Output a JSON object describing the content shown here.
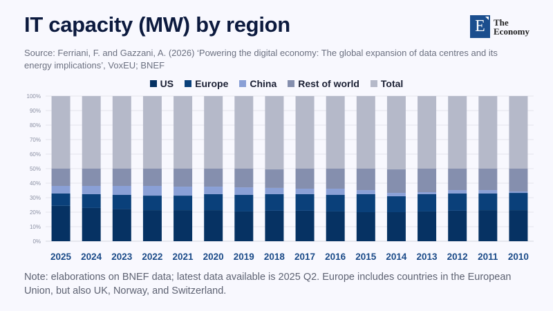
{
  "header": {
    "title": "IT capacity (MW) by region",
    "source": "Source: Ferriani, F. and Gazzani, A. (2026) ‘Powering the digital economy: The global expansion of data centres and its energy implications’, VoxEU; BNEF"
  },
  "logo": {
    "letter": "E",
    "line1": "The",
    "line2": "Economy",
    "color": "#1b4e8e"
  },
  "note": "Note: elaborations on BNEF data; latest data available is 2025 Q2. Europe includes countries in the European Union, but also UK, Norway, and Switzerland.",
  "chart_data": {
    "type": "bar",
    "stacked": true,
    "percent_axis": true,
    "title": "IT capacity (MW) by region",
    "xlabel": "",
    "ylabel": "",
    "ylim": [
      0,
      100
    ],
    "yticks": [
      "0%",
      "10%",
      "20%",
      "30%",
      "40%",
      "50%",
      "60%",
      "70%",
      "80%",
      "90%",
      "100%"
    ],
    "grid": true,
    "legend_position": "top-center",
    "categories": [
      "2025",
      "2024",
      "2023",
      "2022",
      "2021",
      "2020",
      "2019",
      "2018",
      "2017",
      "2016",
      "2015",
      "2014",
      "2013",
      "2012",
      "2011",
      "2010"
    ],
    "series": [
      {
        "name": "US",
        "color": "#063263",
        "values": [
          24.4,
          22.9,
          22.1,
          21.4,
          21.4,
          21.4,
          20.5,
          21.0,
          21.0,
          20.5,
          20.0,
          20.0,
          20.5,
          21.0,
          21.4,
          21.4
        ]
      },
      {
        "name": "Europe",
        "color": "#0a407a",
        "values": [
          8.5,
          9.5,
          9.8,
          10.0,
          10.0,
          11.0,
          11.4,
          11.4,
          11.4,
          11.4,
          12.4,
          11.0,
          11.9,
          11.9,
          11.5,
          11.9
        ]
      },
      {
        "name": "China",
        "color": "#8aa0d6",
        "values": [
          5.2,
          5.7,
          6.2,
          6.7,
          6.2,
          5.2,
          5.2,
          4.3,
          3.8,
          4.3,
          2.8,
          2.3,
          1.4,
          2.3,
          2.3,
          1.0
        ]
      },
      {
        "name": "Rest of world",
        "color": "#858fae",
        "values": [
          11.9,
          11.9,
          11.9,
          11.9,
          12.4,
          12.4,
          12.9,
          12.8,
          13.8,
          13.8,
          14.8,
          16.2,
          16.2,
          14.8,
          14.8,
          15.7
        ]
      },
      {
        "name": "Total",
        "color": "#b5b9c9",
        "values": [
          50,
          50,
          50,
          50,
          50,
          50,
          50,
          50.5,
          50,
          50,
          50,
          50.5,
          50,
          50,
          50,
          50
        ]
      }
    ]
  }
}
